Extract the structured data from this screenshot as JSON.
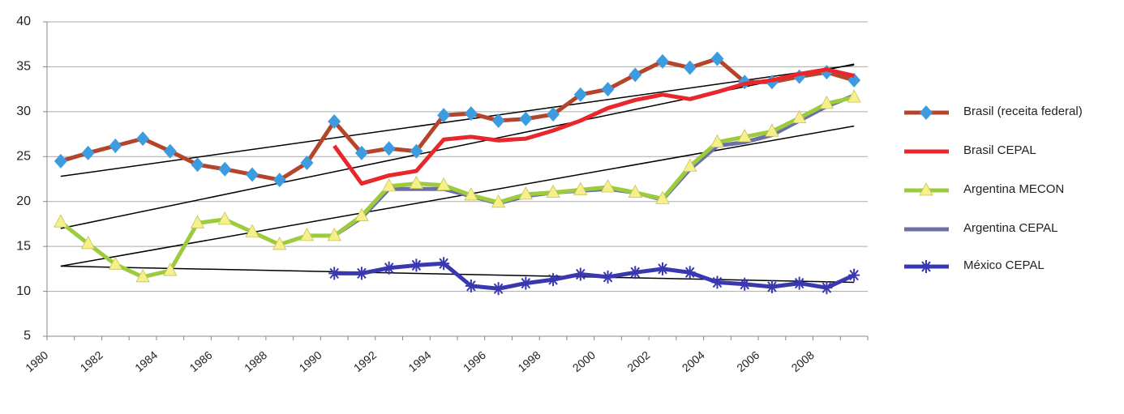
{
  "chart_data": {
    "type": "line",
    "categories": [
      "1980",
      null,
      "1982",
      null,
      "1984",
      null,
      "1986",
      null,
      "1988",
      null,
      "1990",
      null,
      "1992",
      null,
      "1994",
      null,
      "1996",
      null,
      "1998",
      null,
      "2000",
      null,
      "2002",
      null,
      "2004",
      null,
      "2006",
      null,
      "2008",
      null
    ],
    "series": [
      {
        "name": "Brasil (receita federal)",
        "color": "#b5452a",
        "marker": "diamond",
        "marker_color": "#3d9be0",
        "values": [
          24.5,
          25.4,
          26.2,
          27.0,
          25.6,
          24.1,
          23.6,
          23.0,
          22.4,
          24.3,
          28.9,
          25.4,
          25.9,
          25.6,
          29.6,
          29.8,
          29.0,
          29.2,
          29.7,
          31.9,
          32.5,
          34.1,
          35.6,
          34.9,
          35.9,
          33.3,
          33.3,
          33.9,
          34.4,
          33.5
        ]
      },
      {
        "name": "Brasil CEPAL",
        "color": "#e8262b",
        "marker": "none",
        "marker_color": "#e8262b",
        "values": [
          null,
          null,
          null,
          null,
          null,
          null,
          null,
          null,
          null,
          null,
          26.2,
          22.0,
          22.9,
          23.4,
          26.9,
          27.2,
          26.8,
          27.0,
          27.9,
          29.0,
          30.4,
          31.3,
          31.9,
          31.4,
          32.2,
          33.1,
          33.5,
          34.2,
          34.7,
          34.0
        ]
      },
      {
        "name": "Argentina CEPAL",
        "color": "#6d6fa8",
        "marker": "none",
        "marker_color": "#6d6fa8",
        "values": [
          null,
          null,
          null,
          null,
          null,
          null,
          null,
          null,
          null,
          null,
          16.2,
          18.2,
          21.4,
          21.4,
          21.4,
          20.6,
          19.8,
          20.6,
          21.0,
          21.2,
          21.4,
          21.0,
          20.2,
          23.6,
          26.2,
          26.6,
          27.4,
          29.0,
          30.6,
          31.8
        ]
      },
      {
        "name": "Argentina MECON",
        "color": "#9ccc3e",
        "marker": "triangle",
        "marker_color": "#f6f08a",
        "values": [
          17.7,
          15.3,
          13.0,
          11.6,
          12.3,
          17.6,
          18.0,
          16.6,
          15.2,
          16.2,
          16.2,
          18.4,
          21.7,
          22.0,
          21.8,
          20.7,
          19.9,
          20.8,
          21.0,
          21.3,
          21.6,
          21.0,
          20.3,
          23.9,
          26.6,
          27.2,
          27.8,
          29.3,
          30.9,
          31.6
        ]
      },
      {
        "name": "México CEPAL",
        "color": "#3a38b0",
        "marker": "star",
        "marker_color": "#3a38b0",
        "values": [
          null,
          null,
          null,
          null,
          null,
          null,
          null,
          null,
          null,
          null,
          12.0,
          12.0,
          12.6,
          12.9,
          13.1,
          10.6,
          10.3,
          10.9,
          11.3,
          11.9,
          11.6,
          12.1,
          12.5,
          12.1,
          11.0,
          10.8,
          10.5,
          10.9,
          10.4,
          11.8
        ]
      }
    ],
    "legend_order": [
      0,
      1,
      3,
      2,
      4
    ],
    "trend_lines": [
      [
        22.8,
        35.2
      ],
      [
        17.0,
        35.3
      ],
      [
        12.8,
        28.4
      ],
      [
        12.8,
        11.0
      ]
    ],
    "trend_color": "#000000",
    "ylim": [
      5,
      40
    ],
    "yticks": [
      5,
      10,
      15,
      20,
      25,
      30,
      35,
      40
    ],
    "grid": true
  }
}
